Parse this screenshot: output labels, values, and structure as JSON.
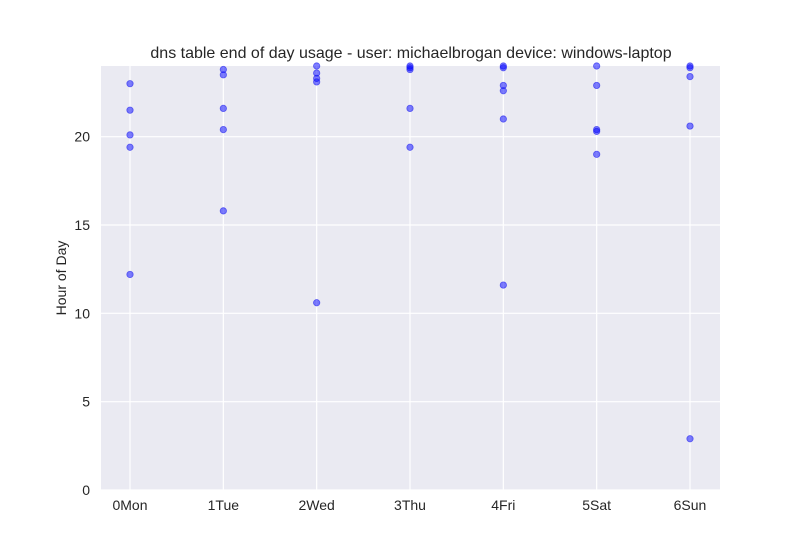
{
  "chart_data": {
    "type": "scatter",
    "title": "dns table end of day usage -  user: michaelbrogan device: windows-laptop",
    "xlabel": "",
    "ylabel": "Hour of Day",
    "categories": [
      "0Mon",
      "1Tue",
      "2Wed",
      "3Thu",
      "4Fri",
      "5Sat",
      "6Sun"
    ],
    "ylim": [
      0,
      24
    ],
    "yticks": [
      0,
      5,
      10,
      15,
      20
    ],
    "grid": true,
    "colors": {
      "background": "#eaeaf2",
      "grid": "#ffffff",
      "point": "#0000ff"
    },
    "series": [
      {
        "category": "0Mon",
        "values": [
          23.0,
          21.5,
          20.1,
          19.4,
          12.2
        ]
      },
      {
        "category": "1Tue",
        "values": [
          23.8,
          23.5,
          21.6,
          20.4,
          15.8
        ]
      },
      {
        "category": "2Wed",
        "values": [
          24.0,
          23.6,
          23.3,
          23.1,
          10.6
        ]
      },
      {
        "category": "3Thu",
        "values": [
          24.0,
          23.9,
          23.8,
          21.6,
          19.4
        ]
      },
      {
        "category": "4Fri",
        "values": [
          24.0,
          23.9,
          22.9,
          22.6,
          21.0,
          11.6
        ]
      },
      {
        "category": "5Sat",
        "values": [
          24.0,
          22.9,
          20.4,
          20.3,
          19.0
        ]
      },
      {
        "category": "6Sun",
        "values": [
          24.0,
          23.9,
          23.4,
          20.6,
          2.9
        ]
      }
    ]
  }
}
